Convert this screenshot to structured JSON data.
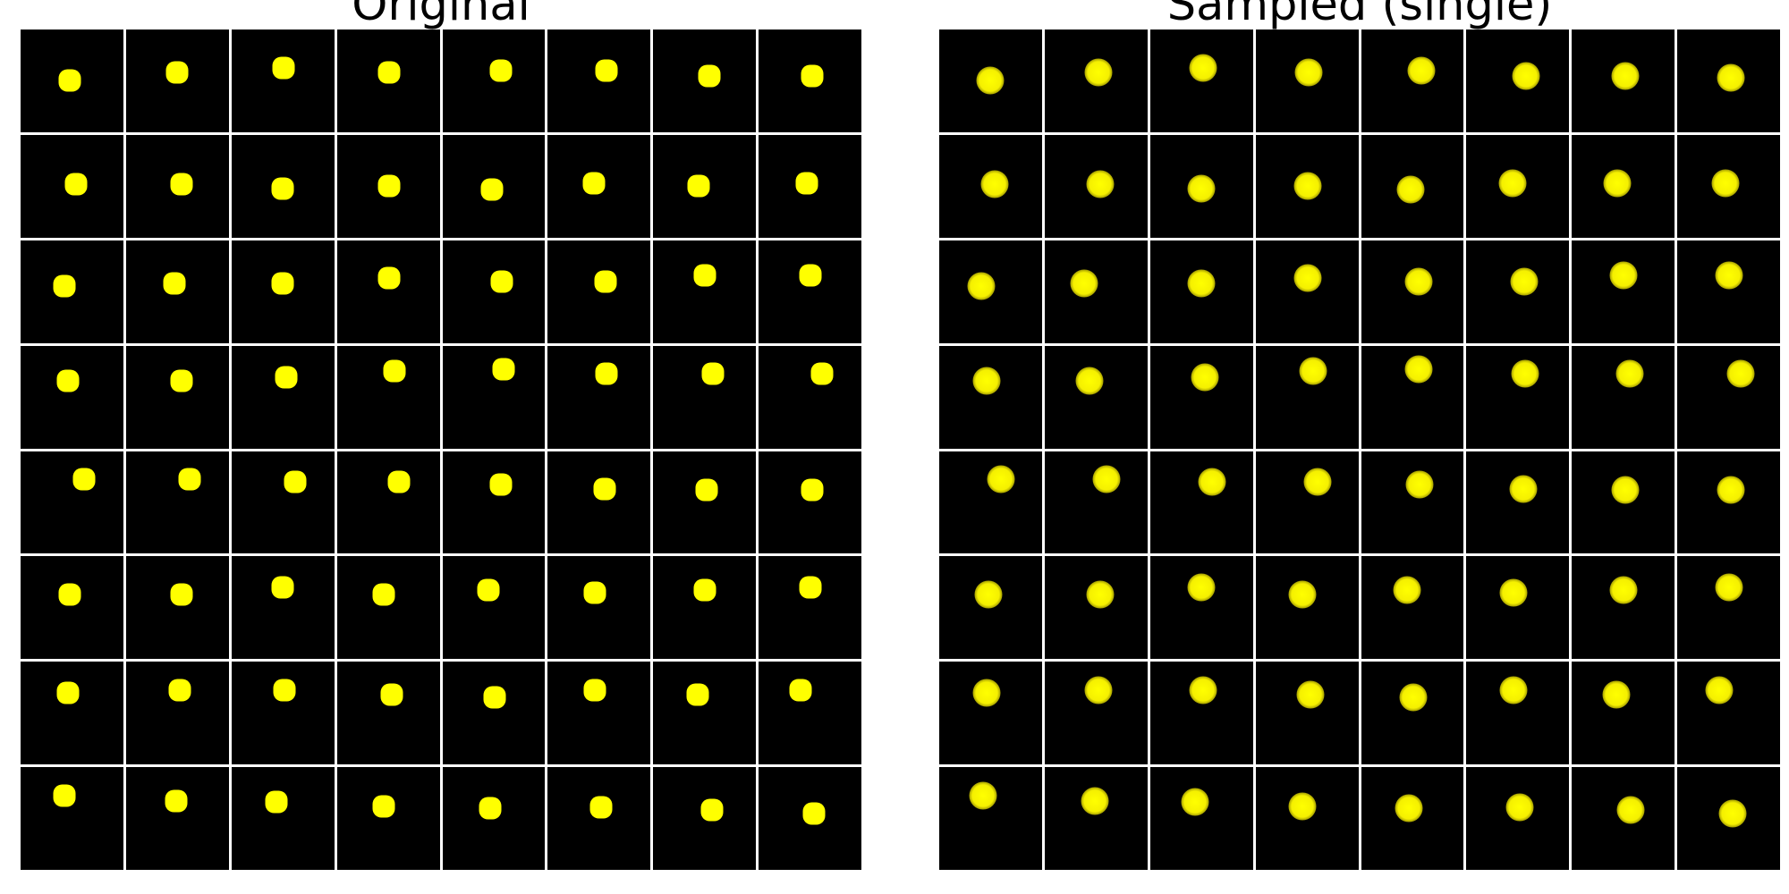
{
  "figure": {
    "panels": [
      {
        "title": "Original",
        "style": "sharp",
        "dot_color": "#ffff00",
        "rows": 8,
        "cols": 8,
        "dots": [
          [
            [
              0.48,
              0.5
            ],
            [
              0.5,
              0.42
            ],
            [
              0.51,
              0.37
            ],
            [
              0.51,
              0.42
            ],
            [
              0.57,
              0.4
            ],
            [
              0.57,
              0.4
            ],
            [
              0.55,
              0.45
            ],
            [
              0.52,
              0.45
            ]
          ],
          [
            [
              0.54,
              0.48
            ],
            [
              0.54,
              0.48
            ],
            [
              0.5,
              0.52
            ],
            [
              0.51,
              0.5
            ],
            [
              0.48,
              0.53
            ],
            [
              0.45,
              0.47
            ],
            [
              0.44,
              0.5
            ],
            [
              0.47,
              0.47
            ]
          ],
          [
            [
              0.43,
              0.45
            ],
            [
              0.47,
              0.42
            ],
            [
              0.5,
              0.42
            ],
            [
              0.51,
              0.37
            ],
            [
              0.58,
              0.4
            ],
            [
              0.56,
              0.4
            ],
            [
              0.5,
              0.34
            ],
            [
              0.5,
              0.34
            ]
          ],
          [
            [
              0.46,
              0.34
            ],
            [
              0.54,
              0.34
            ],
            [
              0.53,
              0.31
            ],
            [
              0.56,
              0.25
            ],
            [
              0.6,
              0.23
            ],
            [
              0.57,
              0.27
            ],
            [
              0.58,
              0.27
            ],
            [
              0.62,
              0.27
            ]
          ],
          [
            [
              0.62,
              0.27
            ],
            [
              0.62,
              0.27
            ],
            [
              0.62,
              0.3
            ],
            [
              0.6,
              0.3
            ],
            [
              0.57,
              0.33
            ],
            [
              0.55,
              0.37
            ],
            [
              0.52,
              0.38
            ],
            [
              0.52,
              0.38
            ]
          ],
          [
            [
              0.48,
              0.37
            ],
            [
              0.54,
              0.37
            ],
            [
              0.5,
              0.3
            ],
            [
              0.46,
              0.37
            ],
            [
              0.45,
              0.33
            ],
            [
              0.46,
              0.35
            ],
            [
              0.5,
              0.33
            ],
            [
              0.5,
              0.3
            ]
          ],
          [
            [
              0.46,
              0.3
            ],
            [
              0.52,
              0.28
            ],
            [
              0.52,
              0.28
            ],
            [
              0.53,
              0.32
            ],
            [
              0.51,
              0.35
            ],
            [
              0.46,
              0.28
            ],
            [
              0.43,
              0.32
            ],
            [
              0.41,
              0.28
            ]
          ],
          [
            [
              0.43,
              0.28
            ],
            [
              0.49,
              0.33
            ],
            [
              0.44,
              0.34
            ],
            [
              0.46,
              0.38
            ],
            [
              0.47,
              0.4
            ],
            [
              0.52,
              0.39
            ],
            [
              0.57,
              0.42
            ],
            [
              0.54,
              0.45
            ]
          ]
        ]
      },
      {
        "title": "Sampled (single)",
        "style": "blurred",
        "dot_color": "#ffff00",
        "rows": 8,
        "cols": 8,
        "dots": [
          [
            [
              0.5,
              0.5
            ],
            [
              0.52,
              0.42
            ],
            [
              0.52,
              0.37
            ],
            [
              0.52,
              0.42
            ],
            [
              0.59,
              0.4
            ],
            [
              0.58,
              0.45
            ],
            [
              0.52,
              0.45
            ],
            [
              0.52,
              0.47
            ]
          ],
          [
            [
              0.54,
              0.48
            ],
            [
              0.54,
              0.48
            ],
            [
              0.5,
              0.52
            ],
            [
              0.51,
              0.5
            ],
            [
              0.48,
              0.53
            ],
            [
              0.45,
              0.47
            ],
            [
              0.44,
              0.47
            ],
            [
              0.47,
              0.47
            ]
          ],
          [
            [
              0.41,
              0.45
            ],
            [
              0.38,
              0.42
            ],
            [
              0.5,
              0.42
            ],
            [
              0.51,
              0.37
            ],
            [
              0.56,
              0.4
            ],
            [
              0.56,
              0.4
            ],
            [
              0.5,
              0.34
            ],
            [
              0.5,
              0.34
            ]
          ],
          [
            [
              0.46,
              0.34
            ],
            [
              0.44,
              0.34
            ],
            [
              0.53,
              0.31
            ],
            [
              0.56,
              0.25
            ],
            [
              0.56,
              0.23
            ],
            [
              0.57,
              0.27
            ],
            [
              0.56,
              0.27
            ],
            [
              0.62,
              0.27
            ]
          ],
          [
            [
              0.6,
              0.27
            ],
            [
              0.6,
              0.27
            ],
            [
              0.6,
              0.3
            ],
            [
              0.6,
              0.3
            ],
            [
              0.57,
              0.33
            ],
            [
              0.55,
              0.37
            ],
            [
              0.52,
              0.38
            ],
            [
              0.52,
              0.38
            ]
          ],
          [
            [
              0.48,
              0.37
            ],
            [
              0.54,
              0.37
            ],
            [
              0.5,
              0.3
            ],
            [
              0.46,
              0.37
            ],
            [
              0.45,
              0.33
            ],
            [
              0.46,
              0.35
            ],
            [
              0.5,
              0.33
            ],
            [
              0.5,
              0.3
            ]
          ],
          [
            [
              0.46,
              0.3
            ],
            [
              0.52,
              0.28
            ],
            [
              0.52,
              0.28
            ],
            [
              0.53,
              0.32
            ],
            [
              0.51,
              0.35
            ],
            [
              0.46,
              0.28
            ],
            [
              0.43,
              0.32
            ],
            [
              0.41,
              0.28
            ]
          ],
          [
            [
              0.43,
              0.28
            ],
            [
              0.49,
              0.33
            ],
            [
              0.44,
              0.34
            ],
            [
              0.46,
              0.38
            ],
            [
              0.47,
              0.4
            ],
            [
              0.52,
              0.39
            ],
            [
              0.57,
              0.42
            ],
            [
              0.54,
              0.45
            ]
          ]
        ]
      }
    ]
  }
}
